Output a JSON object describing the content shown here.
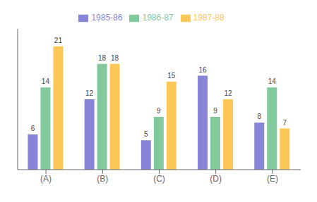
{
  "chart_data": {
    "type": "bar",
    "categories": [
      "(A)",
      "(B)",
      "(C)",
      "(D)",
      "(E)"
    ],
    "series": [
      {
        "name": "1985-86",
        "color": "#8884d8",
        "values": [
          6,
          12,
          5,
          16,
          8
        ]
      },
      {
        "name": "1986-87",
        "color": "#82ca9d",
        "values": [
          14,
          18,
          9,
          9,
          14
        ]
      },
      {
        "name": "1987-88",
        "color": "#ffc658",
        "values": [
          21,
          18,
          15,
          12,
          7
        ]
      }
    ],
    "ylim": [
      0,
      24
    ],
    "tick_labels": "x",
    "grid": false,
    "legend": "top",
    "data_labels": true
  }
}
